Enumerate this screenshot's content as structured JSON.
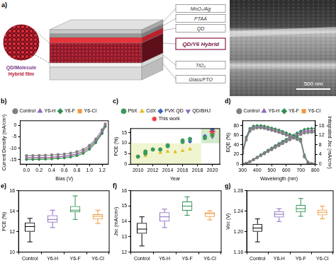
{
  "panel_a": {
    "panel_label": "a)",
    "inset_label": [
      "QD/Molecule",
      "Hybrid film"
    ],
    "layers": [
      "MoOₓ/Ag",
      "PTAA",
      "QD",
      "QD/Y6 Hybrid",
      "TiO₂",
      "Glass/FTO"
    ],
    "scale_bar": "500 nm"
  },
  "chart_data": [
    {
      "panel_label": "b)",
      "type": "line",
      "x_label": "Bias (V)",
      "y_label": "Current Density (mA/cm²)",
      "x": [
        0,
        0.1,
        0.2,
        0.3,
        0.4,
        0.5,
        0.6,
        0.7,
        0.8,
        0.9,
        1.0,
        1.1,
        1.2,
        1.25
      ],
      "series": [
        {
          "name": "Control",
          "color": "#808080",
          "marker": "circle",
          "values": [
            -13.3,
            -13.25,
            -13.2,
            -13.1,
            -13.0,
            -12.8,
            -12.6,
            -12.2,
            -11.6,
            -10.6,
            -8.8,
            -6.0,
            -2.0,
            0.6
          ]
        },
        {
          "name": "Y6-H",
          "color": "#8a6bbf",
          "marker": "triangle",
          "values": [
            -14.2,
            -14.15,
            -14.1,
            -14.0,
            -13.9,
            -13.7,
            -13.5,
            -13.1,
            -12.5,
            -11.4,
            -9.6,
            -6.8,
            -2.9,
            0.0
          ]
        },
        {
          "name": "Y6-F",
          "color": "#2f8f4e",
          "marker": "diamond",
          "values": [
            -15.0,
            -14.95,
            -14.9,
            -14.8,
            -14.7,
            -14.5,
            -14.3,
            -13.9,
            -13.3,
            -12.3,
            -10.5,
            -7.6,
            -3.6,
            -0.6
          ]
        },
        {
          "name": "Y6-Cl",
          "color": "#f0973c",
          "marker": "square",
          "values": [
            -14.4,
            -14.35,
            -14.3,
            -14.2,
            -14.1,
            -13.9,
            -13.7,
            -13.3,
            -12.7,
            -11.6,
            -9.8,
            -7.0,
            -3.1,
            -0.2
          ]
        }
      ],
      "xlim": [
        -0.1,
        1.3
      ],
      "xticks": [
        {
          "value": 0,
          "label": "0.0"
        },
        0.2,
        0.4,
        0.6,
        0.8,
        {
          "value": 1,
          "label": "1.0"
        },
        1.2
      ],
      "ylim": [
        -17,
        2
      ],
      "yticks": [
        -15,
        -10,
        -5,
        0
      ],
      "grid": false,
      "legend": "top"
    },
    {
      "panel_label": "c)",
      "type": "scatter",
      "x_label": "Year",
      "y_label": "PCE (%)",
      "series": [
        {
          "name": "PbX",
          "color": "#3a9a5a",
          "marker": "circle",
          "x": [
            2010,
            2011,
            2011,
            2012,
            2013,
            2014,
            2014,
            2016,
            2016,
            2017,
            2019,
            2020
          ],
          "values": [
            3.6,
            5.1,
            6.0,
            7.0,
            7.0,
            8.6,
            9.0,
            10.6,
            11.3,
            12.0,
            12.5,
            13.8
          ]
        },
        {
          "name": "CdX",
          "color": "#e0bf2a",
          "marker": "triangle",
          "x": [
            2011,
            2013,
            2014,
            2015,
            2016,
            2017
          ],
          "values": [
            4.0,
            5.5,
            6.0,
            5.8,
            6.4,
            7.2
          ]
        },
        {
          "name": "PVK QD",
          "color": "#3b5fc0",
          "marker": "diamond",
          "x": [
            2017,
            2019,
            2020
          ],
          "values": [
            10.8,
            13.4,
            16.6
          ]
        },
        {
          "name": "QD/BHJ",
          "color": "#8a6bbf",
          "marker": "triangle-down",
          "x": [
            2019,
            2020,
            2020
          ],
          "values": [
            12.6,
            13.6,
            12.9
          ]
        },
        {
          "name": "This work",
          "color": "#e8333a",
          "marker": "star",
          "x": [
            2020
          ],
          "values": [
            15.5
          ]
        }
      ],
      "shaded_regions": [
        {
          "x": [
            2009,
            2018.5
          ],
          "y": [
            0,
            10
          ],
          "color": "#f1f5cf"
        },
        {
          "x": [
            2018.5,
            2021
          ],
          "y": [
            10,
            17
          ],
          "color": "#d3eacb"
        }
      ],
      "xlim": [
        2009,
        2021
      ],
      "xticks": [
        2010,
        2012,
        2014,
        2016,
        2018,
        2020
      ],
      "ylim": [
        0,
        17
      ],
      "yticks": [
        0,
        5,
        10,
        15
      ],
      "grid": false,
      "legend": "top"
    },
    {
      "panel_label": "d)",
      "type": "line",
      "x_label": "Wavelength (nm)",
      "y_label": "EQE (%)",
      "y2_label": "Integrated Jsc (mA/cm²)",
      "x": [
        300,
        325,
        350,
        375,
        400,
        425,
        450,
        475,
        500,
        525,
        550,
        575,
        600,
        625,
        650,
        675,
        700,
        725,
        750,
        775,
        800
      ],
      "series": [
        {
          "name": "Control",
          "color": "#808080",
          "marker": "circle",
          "values": [
            22,
            50,
            68,
            73,
            75,
            75,
            74,
            72,
            70,
            68,
            66,
            63,
            60,
            57,
            54,
            51,
            47,
            15,
            3,
            1,
            0
          ]
        },
        {
          "name": "Y6-H",
          "color": "#8a6bbf",
          "marker": "triangle",
          "values": [
            24,
            53,
            71,
            76,
            77,
            77,
            76,
            74,
            72,
            70,
            68,
            65,
            62,
            59,
            56,
            53,
            49,
            17,
            4,
            1,
            0
          ]
        },
        {
          "name": "Y6-F",
          "color": "#2f8f4e",
          "marker": "diamond",
          "values": [
            26,
            56,
            74,
            79,
            80,
            80,
            79,
            77,
            75,
            73,
            71,
            68,
            65,
            62,
            59,
            56,
            52,
            19,
            4,
            1,
            0
          ]
        },
        {
          "name": "Y6-Cl",
          "color": "#f0973c",
          "marker": "square",
          "values": [
            24,
            52,
            70,
            75,
            77,
            77,
            76,
            74,
            72,
            70,
            67,
            65,
            62,
            59,
            56,
            53,
            49,
            17,
            4,
            1,
            0
          ]
        },
        {
          "name": "Control",
          "color": "#808080",
          "marker": "circle",
          "axis": "y2",
          "values": [
            0,
            0.3,
            1.0,
            1.8,
            2.6,
            3.5,
            4.3,
            5.2,
            6.0,
            6.9,
            7.7,
            8.5,
            9.3,
            10.1,
            10.8,
            11.6,
            12.3,
            12.9,
            13.1,
            13.2,
            13.2
          ]
        },
        {
          "name": "Y6-H",
          "color": "#8a6bbf",
          "marker": "triangle",
          "axis": "y2",
          "values": [
            0,
            0.3,
            1.0,
            1.9,
            2.8,
            3.7,
            4.6,
            5.5,
            6.4,
            7.3,
            8.2,
            9.0,
            9.8,
            10.6,
            11.4,
            12.2,
            13.0,
            13.7,
            13.9,
            14.0,
            14.0
          ]
        },
        {
          "name": "Y6-F",
          "color": "#2f8f4e",
          "marker": "diamond",
          "axis": "y2",
          "values": [
            0,
            0.4,
            1.1,
            2.0,
            2.9,
            3.9,
            4.8,
            5.8,
            6.7,
            7.7,
            8.6,
            9.5,
            10.3,
            11.2,
            12.0,
            12.9,
            13.7,
            14.4,
            14.7,
            14.8,
            14.8
          ]
        },
        {
          "name": "Y6-Cl",
          "color": "#f0973c",
          "marker": "square",
          "axis": "y2",
          "values": [
            0,
            0.3,
            1.0,
            1.9,
            2.8,
            3.7,
            4.6,
            5.5,
            6.4,
            7.3,
            8.2,
            9.0,
            9.8,
            10.6,
            11.4,
            12.2,
            12.9,
            13.6,
            13.8,
            13.9,
            13.9
          ]
        }
      ],
      "xlim": [
        300,
        800
      ],
      "xticks": [
        300,
        400,
        500,
        600,
        700,
        800
      ],
      "ylim": [
        0,
        90
      ],
      "yticks": [
        0,
        20,
        40,
        60,
        80
      ],
      "y2lim": [
        0,
        18
      ],
      "y2ticks": [
        0,
        4,
        8,
        12,
        16
      ],
      "grid": false,
      "legend": "top"
    },
    {
      "panel_label": "e)",
      "type": "box",
      "y_label": "PCE (%)",
      "categories": [
        "Control",
        "Y6-H",
        "Y6-F",
        "Y6-Cl"
      ],
      "boxes": [
        {
          "min": 11.0,
          "q1": 12.0,
          "median": 12.5,
          "q3": 12.9,
          "max": 13.3
        },
        {
          "min": 12.4,
          "q1": 12.9,
          "median": 13.2,
          "q3": 13.6,
          "max": 14.1
        },
        {
          "min": 13.2,
          "q1": 13.9,
          "median": 14.1,
          "q3": 14.5,
          "max": 15.5
        },
        {
          "min": 12.8,
          "q1": 13.2,
          "median": 13.5,
          "q3": 13.7,
          "max": 14.1
        }
      ],
      "colors": [
        "#000000",
        "#8a6bbf",
        "#2f8f4e",
        "#f0973c"
      ],
      "ylim": [
        10,
        16
      ],
      "yticks": [
        10,
        12,
        14,
        16
      ],
      "grid": false
    },
    {
      "panel_label": "f)",
      "type": "box",
      "y_label": "Jsc (mA/cm²)",
      "categories": [
        "Control",
        "Y6-H",
        "Y6-F",
        "Y6-Cl"
      ],
      "boxes": [
        {
          "min": 12.4,
          "q1": 13.2,
          "median": 13.5,
          "q3": 13.9,
          "max": 14.3
        },
        {
          "min": 13.6,
          "q1": 14.0,
          "median": 14.3,
          "q3": 14.6,
          "max": 14.8
        },
        {
          "min": 14.4,
          "q1": 14.7,
          "median": 15.0,
          "q3": 15.3,
          "max": 15.6
        },
        {
          "min": 14.1,
          "q1": 14.3,
          "median": 14.5,
          "q3": 14.6,
          "max": 14.7
        }
      ],
      "colors": [
        "#000000",
        "#8a6bbf",
        "#2f8f4e",
        "#f0973c"
      ],
      "ylim": [
        12,
        16
      ],
      "yticks": [
        12,
        13,
        14,
        15,
        16
      ],
      "grid": false
    },
    {
      "panel_label": "g)",
      "type": "box",
      "y_label": "Voc (V)",
      "categories": [
        "Control",
        "Y6-H",
        "Y6-F",
        "Y6-Cl"
      ],
      "boxes": [
        {
          "min": 1.18,
          "q1": 1.2,
          "median": 1.207,
          "q3": 1.215,
          "max": 1.225
        },
        {
          "min": 1.22,
          "q1": 1.228,
          "median": 1.234,
          "q3": 1.24,
          "max": 1.245
        },
        {
          "min": 1.23,
          "q1": 1.238,
          "median": 1.245,
          "q3": 1.252,
          "max": 1.265
        },
        {
          "min": 1.225,
          "q1": 1.232,
          "median": 1.238,
          "q3": 1.243,
          "max": 1.25
        }
      ],
      "colors": [
        "#000000",
        "#8a6bbf",
        "#2f8f4e",
        "#f0973c"
      ],
      "ylim": [
        1.16,
        1.28
      ],
      "yticks": [
        1.16,
        {
          "value": 1.2,
          "label": "1.20"
        },
        1.24,
        1.28
      ],
      "grid": false
    }
  ]
}
